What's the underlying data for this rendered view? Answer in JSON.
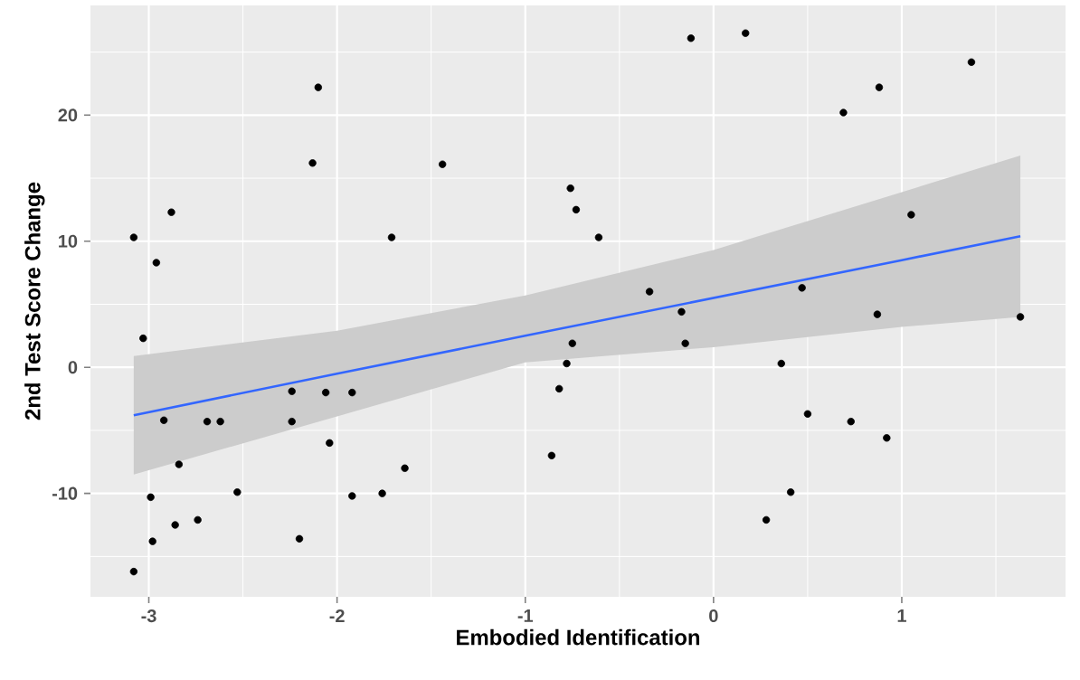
{
  "chart_data": {
    "type": "scatter",
    "xlabel": "Embodied Identification",
    "ylabel": "2nd Test Score Change",
    "xlim": [
      -3.31,
      1.87
    ],
    "ylim": [
      -18.2,
      28.7
    ],
    "xticks": [
      -3,
      -2,
      -1,
      0,
      1
    ],
    "yticks": [
      -10,
      0,
      10,
      20
    ],
    "grid": true,
    "series": [
      {
        "color": "#000000",
        "marker": "circle",
        "x": [
          -3.08,
          -3.08,
          -3.03,
          -2.99,
          -2.98,
          -2.96,
          -2.88,
          -2.92,
          -2.86,
          -2.84,
          -2.74,
          -2.69,
          -2.62,
          -2.53,
          -2.24,
          -2.24,
          -2.2,
          -2.13,
          -2.1,
          -2.06,
          -2.04,
          -1.92,
          -1.92,
          -1.76,
          -1.71,
          -1.64,
          -1.44,
          -0.86,
          -0.82,
          -0.78,
          -0.75,
          -0.76,
          -0.73,
          -0.61,
          -0.34,
          -0.17,
          -0.15,
          -0.12,
          0.17,
          0.28,
          0.36,
          0.41,
          0.47,
          0.5,
          0.69,
          0.73,
          0.87,
          0.88,
          0.92,
          1.05,
          1.37,
          1.63
        ],
        "values": [
          -16.2,
          10.3,
          2.3,
          -10.3,
          -13.8,
          8.3,
          12.3,
          -4.2,
          -12.5,
          -7.7,
          -12.1,
          -4.3,
          -4.3,
          -9.9,
          -1.9,
          -4.3,
          -13.6,
          16.2,
          22.2,
          -2.0,
          -6.0,
          -2.0,
          -10.2,
          -10.0,
          10.3,
          -8.0,
          16.1,
          -7.0,
          -1.7,
          0.3,
          1.9,
          14.2,
          12.5,
          10.3,
          6.0,
          4.4,
          1.9,
          26.1,
          26.5,
          -12.1,
          0.3,
          -9.9,
          6.3,
          -3.7,
          20.2,
          -4.3,
          4.2,
          22.2,
          -5.6,
          12.1,
          24.2,
          4.0
        ]
      },
      {
        "type": "line",
        "color": "#3366ff",
        "marker": "none",
        "x": [
          -3.08,
          -2,
          -1,
          0,
          1,
          1.63
        ],
        "values": [
          -3.8,
          -0.5,
          2.5,
          5.5,
          8.5,
          10.4
        ],
        "lower": [
          -8.5,
          -3.9,
          0.4,
          1.6,
          3.2,
          4.0
        ],
        "upper": [
          0.9,
          2.9,
          5.7,
          9.3,
          13.9,
          16.8
        ]
      }
    ]
  }
}
